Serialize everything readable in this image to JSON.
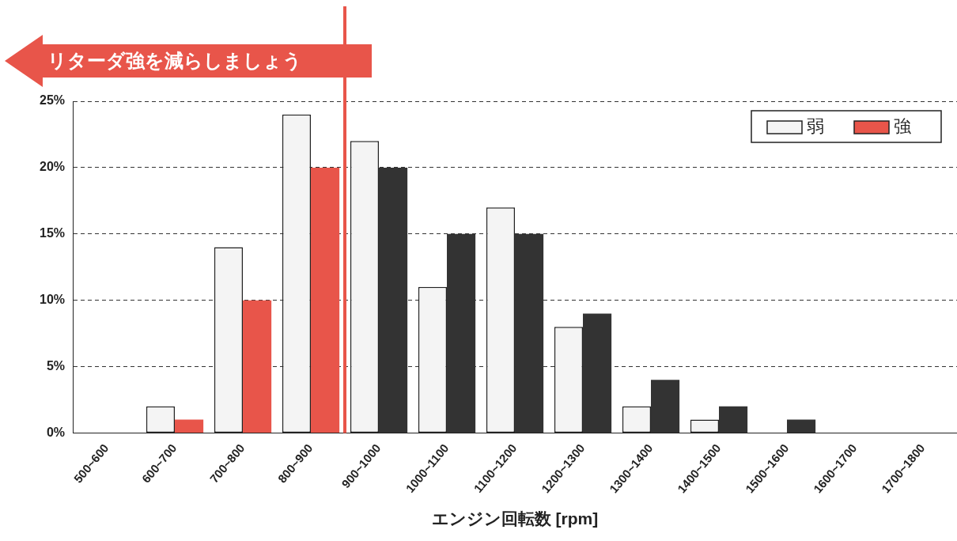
{
  "chart_data": {
    "type": "bar",
    "xlabel": "エンジン回転数 [rpm]",
    "categories": [
      "500~600",
      "600~700",
      "700~800",
      "800~900",
      "900~1000",
      "1000~1100",
      "1100~1200",
      "1200~1300",
      "1300~1400",
      "1400~1500",
      "1500~1600",
      "1600~1700",
      "1700~1800"
    ],
    "series": [
      {
        "name": "弱",
        "color": "#f4f4f4",
        "values": [
          0,
          2,
          14,
          24,
          22,
          11,
          17,
          8,
          2,
          1,
          0,
          0,
          0
        ]
      },
      {
        "name": "強",
        "color": "#e8554a",
        "colors": [
          "#e8554a",
          "#e8554a",
          "#e8554a",
          "#e8554a",
          "#333333",
          "#333333",
          "#333333",
          "#333333",
          "#333333",
          "#333333",
          "#333333",
          "#333333",
          "#333333"
        ],
        "values": [
          0,
          1,
          10,
          20,
          20,
          15,
          15,
          9,
          4,
          2,
          1,
          0,
          0
        ]
      }
    ],
    "ylim": [
      0,
      25
    ],
    "yticks": [
      {
        "value": 0,
        "label": "0%"
      },
      {
        "value": 5,
        "label": "5%"
      },
      {
        "value": 10,
        "label": "10%"
      },
      {
        "value": 15,
        "label": "15%"
      },
      {
        "value": 20,
        "label": "20%"
      },
      {
        "value": 25,
        "label": "25%"
      }
    ],
    "grid": "y",
    "legend": "top right",
    "ref_lines": [
      {
        "axis": "x",
        "value": "900~1000",
        "label": "リターダ強を減らしましょう",
        "color": "#e8554a"
      }
    ]
  }
}
